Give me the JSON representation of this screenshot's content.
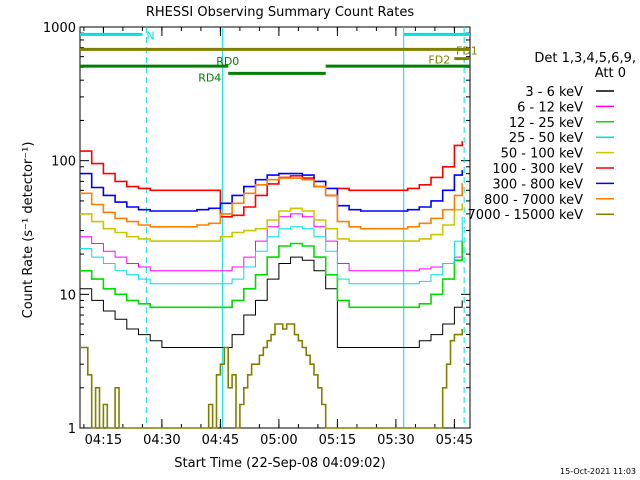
{
  "chart_data": {
    "type": "line",
    "title": "RHESSI Observing Summary Count Rates",
    "xlabel": "Start Time (22-Sep-08 04:09:02)",
    "ylabel": "Count Rate (s⁻¹ detector⁻¹)",
    "yscale": "log",
    "xlim": [
      0,
      100
    ],
    "ylim": [
      1,
      1000
    ],
    "xticks": [
      {
        "x": 6,
        "label": "04:15"
      },
      {
        "x": 21,
        "label": "04:30"
      },
      {
        "x": 36,
        "label": "04:45"
      },
      {
        "x": 51,
        "label": "05:00"
      },
      {
        "x": 66,
        "label": "05:15"
      },
      {
        "x": 81,
        "label": "05:30"
      },
      {
        "x": 96,
        "label": "05:45"
      }
    ],
    "yticks": [
      {
        "y": 1,
        "label": "1"
      },
      {
        "y": 10,
        "label": "10"
      },
      {
        "y": 100,
        "label": "100"
      },
      {
        "y": 1000,
        "label": "1000"
      }
    ],
    "legend_title": [
      "Det 1,3,4,5,6,9,",
      "Att 0"
    ],
    "legend_placement": "right",
    "timestamp": "15-Oct-2021 11:03",
    "vlines": [
      {
        "x": 17,
        "color": "#00e0e0",
        "style": "dashed"
      },
      {
        "x": 36.5,
        "color": "#00e0e0",
        "style": "solid"
      },
      {
        "x": 83,
        "color": "#00e0e0",
        "style": "solid"
      },
      {
        "x": 98.5,
        "color": "#00e0e0",
        "style": "dashed"
      }
    ],
    "flag_bars": [
      {
        "label": "N",
        "color": "#00e0e0",
        "segments": [
          [
            0,
            16
          ],
          [
            83,
            100
          ]
        ],
        "y": 880
      },
      {
        "label": "FD1",
        "color": "#808000",
        "segments": [
          [
            0,
            100
          ]
        ],
        "y": 680
      },
      {
        "label": "FD2",
        "color": "#808000",
        "segments": [
          [
            96,
            100
          ]
        ],
        "y": 580
      },
      {
        "label": "RD0",
        "color": "#008000",
        "segments": [
          [
            0,
            38
          ],
          [
            63,
            100
          ]
        ],
        "y": 510
      },
      {
        "label": "RD4",
        "color": "#008000",
        "segments": [
          [
            38,
            63
          ]
        ],
        "y": 450
      }
    ],
    "series": [
      {
        "name": "3 - 6 keV",
        "color": "#000000",
        "stroke": 1,
        "x": [
          0,
          3,
          6,
          9,
          12,
          15,
          18,
          21,
          24,
          27,
          30,
          33,
          36,
          39,
          42,
          45,
          48,
          51,
          54,
          57,
          60,
          63,
          66,
          69,
          72,
          75,
          78,
          81,
          84,
          87,
          90,
          93,
          96,
          98
        ],
        "y": [
          11,
          9,
          7.5,
          6.5,
          5.5,
          5,
          4.5,
          4,
          4,
          4,
          4,
          4,
          4,
          5,
          7,
          9,
          13,
          17,
          19,
          18,
          15,
          11,
          4,
          4,
          4,
          4,
          4,
          4,
          4,
          4.5,
          5,
          6,
          8,
          9
        ]
      },
      {
        "name": "6 - 12 keV",
        "color": "#ff00ff",
        "stroke": 1,
        "x": [
          0,
          3,
          6,
          9,
          12,
          15,
          18,
          21,
          24,
          27,
          30,
          33,
          36,
          39,
          42,
          45,
          48,
          51,
          54,
          57,
          60,
          63,
          66,
          69,
          72,
          75,
          78,
          81,
          84,
          87,
          90,
          93,
          96,
          98
        ],
        "y": [
          27,
          24,
          21,
          19,
          17,
          16,
          15,
          15,
          15,
          15,
          15,
          15,
          15,
          16,
          19,
          25,
          32,
          38,
          40,
          38,
          32,
          25,
          17,
          15,
          15,
          15,
          15,
          15,
          15,
          15.5,
          16,
          17,
          19,
          20
        ]
      },
      {
        "name": "12 - 25 keV",
        "color": "#00dd00",
        "stroke": 1.6,
        "x": [
          0,
          3,
          6,
          9,
          12,
          15,
          18,
          21,
          24,
          27,
          30,
          33,
          36,
          39,
          42,
          45,
          48,
          51,
          54,
          57,
          60,
          63,
          66,
          69,
          72,
          75,
          78,
          81,
          84,
          87,
          90,
          93,
          96,
          98
        ],
        "y": [
          15,
          13,
          11,
          10,
          9,
          8.5,
          8,
          8,
          8,
          8,
          8,
          8,
          8,
          9,
          11,
          14,
          19,
          23,
          24,
          23,
          19,
          14,
          9,
          8,
          8,
          8,
          8,
          8,
          8,
          8.5,
          10,
          13,
          18,
          25
        ]
      },
      {
        "name": "25 - 50 keV",
        "color": "#00e0e0",
        "stroke": 1,
        "x": [
          0,
          3,
          6,
          9,
          12,
          15,
          18,
          21,
          24,
          27,
          30,
          33,
          36,
          39,
          42,
          45,
          48,
          51,
          54,
          57,
          60,
          63,
          66,
          69,
          72,
          75,
          78,
          81,
          84,
          87,
          90,
          93,
          96,
          98
        ],
        "y": [
          22,
          19,
          17,
          15,
          14,
          13,
          12,
          12,
          12,
          12,
          12,
          12,
          12,
          13,
          16,
          21,
          27,
          31,
          32,
          31,
          27,
          21,
          13,
          12,
          12,
          12,
          12,
          12,
          12,
          12.5,
          14,
          17,
          25,
          38
        ]
      },
      {
        "name": "50 - 100 keV",
        "color": "#c8c800",
        "stroke": 1.6,
        "x": [
          0,
          3,
          6,
          9,
          12,
          15,
          18,
          21,
          24,
          27,
          30,
          33,
          36,
          39,
          42,
          45,
          48,
          51,
          54,
          57,
          60,
          63,
          66,
          69,
          72,
          75,
          78,
          81,
          84,
          87,
          90,
          93,
          96,
          98
        ],
        "y": [
          40,
          35,
          31,
          29,
          27,
          26,
          25,
          25,
          25,
          25,
          25,
          25,
          27,
          29,
          30,
          31,
          36,
          42,
          44,
          42,
          36,
          31,
          26,
          25,
          25,
          25,
          25,
          25,
          25,
          26,
          28,
          33,
          43,
          48
        ]
      },
      {
        "name": "100 - 300 keV",
        "color": "#ff0000",
        "stroke": 1.6,
        "x": [
          0,
          3,
          6,
          9,
          12,
          15,
          18,
          21,
          24,
          27,
          30,
          33,
          36,
          39,
          42,
          45,
          48,
          51,
          54,
          57,
          60,
          63,
          66,
          69,
          72,
          75,
          78,
          81,
          84,
          87,
          90,
          93,
          96,
          98
        ],
        "y": [
          118,
          95,
          80,
          70,
          64,
          62,
          60,
          60,
          60,
          60,
          60,
          60,
          38,
          39,
          45,
          55,
          67,
          75,
          77,
          74,
          64,
          55,
          62,
          60,
          60,
          60,
          60,
          60,
          62,
          66,
          75,
          90,
          130,
          140
        ]
      },
      {
        "name": "300 - 800 keV",
        "color": "#0000ff",
        "stroke": 1.6,
        "x": [
          0,
          3,
          6,
          9,
          12,
          15,
          18,
          21,
          24,
          27,
          30,
          33,
          36,
          39,
          42,
          45,
          48,
          51,
          54,
          57,
          60,
          63,
          66,
          69,
          72,
          75,
          78,
          81,
          84,
          87,
          90,
          93,
          96,
          98
        ],
        "y": [
          80,
          63,
          55,
          49,
          45,
          43,
          42,
          42,
          42,
          42,
          43,
          44,
          48,
          55,
          64,
          72,
          78,
          80,
          80,
          78,
          70,
          62,
          46,
          43,
          42,
          42,
          42,
          42,
          43,
          45,
          50,
          60,
          78,
          85
        ]
      },
      {
        "name": "800 - 7000 keV",
        "color": "#ff7f00",
        "stroke": 1.6,
        "x": [
          0,
          3,
          6,
          9,
          12,
          15,
          18,
          21,
          24,
          27,
          30,
          33,
          36,
          39,
          42,
          45,
          48,
          51,
          54,
          57,
          60,
          63,
          66,
          69,
          72,
          75,
          78,
          81,
          84,
          87,
          90,
          93,
          96,
          98
        ],
        "y": [
          57,
          47,
          41,
          37,
          35,
          33,
          32,
          32,
          32,
          32,
          33,
          34,
          40,
          48,
          57,
          66,
          72,
          74,
          74,
          72,
          64,
          55,
          35,
          32,
          31,
          31,
          31,
          31,
          32,
          34,
          37,
          43,
          55,
          68
        ]
      },
      {
        "name": "7000 - 15000 keV",
        "color": "#808000",
        "stroke": 1.6,
        "x": [
          0,
          1,
          2,
          3,
          4,
          5,
          6,
          7,
          8,
          9,
          10,
          11,
          12,
          13,
          14,
          15,
          16,
          17,
          18,
          19,
          20,
          21,
          22,
          23,
          24,
          25,
          26,
          27,
          28,
          29,
          30,
          31,
          32,
          33,
          34,
          35,
          36,
          37,
          38,
          39,
          40,
          41,
          42,
          43,
          44,
          45,
          46,
          47,
          48,
          49,
          50,
          51,
          52,
          53,
          54,
          55,
          56,
          57,
          58,
          59,
          60,
          61,
          62,
          63,
          64,
          65,
          66,
          67,
          68,
          69,
          70,
          71,
          72,
          73,
          74,
          75,
          76,
          77,
          78,
          79,
          80,
          81,
          82,
          83,
          84,
          85,
          86,
          87,
          88,
          89,
          90,
          91,
          92,
          93,
          94,
          95,
          96,
          97,
          98
        ],
        "y": [
          4,
          4,
          2.5,
          1,
          2,
          1,
          1.5,
          1,
          1,
          2,
          1,
          1,
          1,
          1,
          1,
          1,
          1,
          1,
          1,
          1,
          1,
          1,
          1,
          1,
          1,
          1,
          1,
          1,
          1,
          1,
          1,
          1,
          1,
          1.5,
          1,
          2.5,
          3,
          4,
          2,
          2.5,
          1,
          1.5,
          2,
          2.5,
          3,
          3,
          3.5,
          4,
          4.5,
          5,
          6,
          6,
          5.5,
          6,
          6,
          5,
          4.5,
          4,
          3.5,
          3,
          2.5,
          2,
          1.5,
          1,
          1,
          1,
          1,
          1,
          1,
          1,
          1,
          1,
          1,
          1,
          1,
          1,
          1,
          1,
          1,
          1,
          1,
          1,
          1,
          1,
          1,
          1,
          1,
          1,
          1,
          1,
          1,
          1,
          1,
          2,
          3,
          4.5,
          5,
          5,
          5.5
        ]
      }
    ]
  }
}
